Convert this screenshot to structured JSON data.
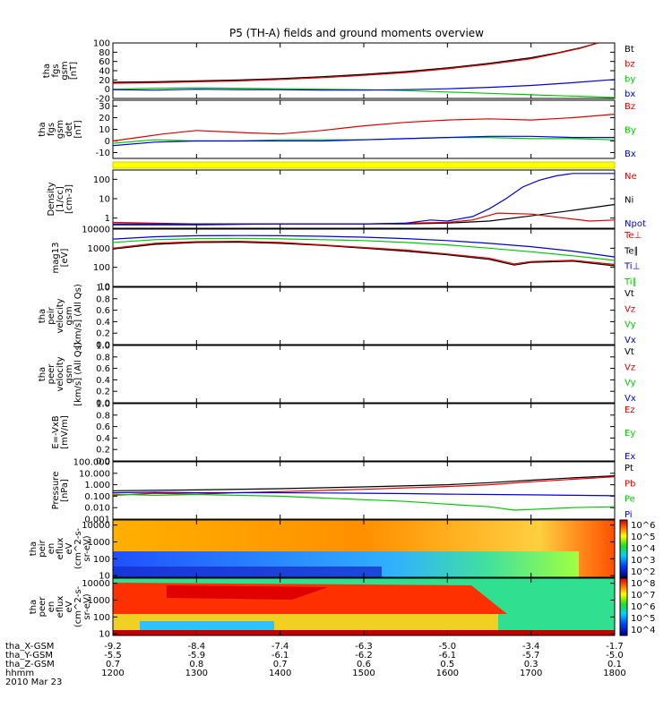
{
  "chart_data": {
    "type": "line",
    "title": "P5 (TH-A) fields and ground moments overview",
    "panels": [
      {
        "id": "fgs_gsm",
        "ylabel": [
          "tha",
          "fgs",
          "gsm",
          "[nT]"
        ],
        "ylim": [
          -20,
          100
        ],
        "ticks": [
          "100",
          "80",
          "60",
          "40",
          "20",
          "0",
          "-20"
        ],
        "legend": [
          {
            "name": "Bt",
            "color": "#000000"
          },
          {
            "name": "bz",
            "color": "#e00000"
          },
          {
            "name": "by",
            "color": "#00c800"
          },
          {
            "name": "bx",
            "color": "#0000e0"
          }
        ]
      },
      {
        "id": "fgs_gsm_det",
        "ylabel": [
          "tha",
          "fgs",
          "gsm",
          "det",
          "[nT]"
        ],
        "ylim": [
          -15,
          35
        ],
        "ticks": [
          "30",
          "20",
          "10",
          "0",
          "-10"
        ],
        "legend": [
          {
            "name": "Bz",
            "color": "#e00000"
          },
          {
            "name": "By",
            "color": "#00c800"
          },
          {
            "name": "Bx",
            "color": "#0000e0"
          }
        ]
      },
      {
        "id": "density",
        "ylabel": [
          "Density",
          "[1/cc]",
          "[cm-3]"
        ],
        "ylim": [
          0.3,
          300
        ],
        "log": true,
        "ticks": [
          "100",
          "10",
          "1"
        ],
        "legend": [
          {
            "name": "Ne",
            "color": "#e00000"
          },
          {
            "name": "Ni",
            "color": "#000000"
          },
          {
            "name": "Npot",
            "color": "#0000e0"
          }
        ]
      },
      {
        "id": "temperature",
        "ylabel": [
          "mag13",
          "[eV]"
        ],
        "ylim": [
          10,
          10000
        ],
        "log": true,
        "ticks": [
          "10000",
          "1000",
          "100",
          "10"
        ],
        "legend": [
          {
            "name": "Te⊥",
            "color": "#e00000"
          },
          {
            "name": "Te∥",
            "color": "#000000"
          },
          {
            "name": "Ti⊥",
            "color": "#0000e0"
          },
          {
            "name": "Ti∥",
            "color": "#00c800"
          }
        ]
      },
      {
        "id": "peir_velocity",
        "ylabel": [
          "tha",
          "peir",
          "velocity",
          "gsm",
          "[km/s] (All Qs)"
        ],
        "ylim": [
          0,
          1
        ],
        "ticks": [
          "1.0",
          "0.8",
          "0.6",
          "0.4",
          "0.2",
          "0.0"
        ],
        "legend": [
          {
            "name": "Vt",
            "color": "#000000"
          },
          {
            "name": "Vz",
            "color": "#e00000"
          },
          {
            "name": "Vy",
            "color": "#00c800"
          },
          {
            "name": "Vx",
            "color": "#0000e0"
          }
        ]
      },
      {
        "id": "peer_velocity",
        "ylabel": [
          "tha",
          "peer",
          "velocity",
          "gsm",
          "[km/s] (All Qs)"
        ],
        "ylim": [
          0,
          1
        ],
        "ticks": [
          "1.0",
          "0.8",
          "0.6",
          "0.4",
          "0.2",
          "0.0"
        ],
        "legend": [
          {
            "name": "Vt",
            "color": "#000000"
          },
          {
            "name": "Vz",
            "color": "#e00000"
          },
          {
            "name": "Vy",
            "color": "#00c800"
          },
          {
            "name": "Vx",
            "color": "#0000e0"
          }
        ]
      },
      {
        "id": "efield",
        "ylabel": [
          "E=-VxB",
          "[mV/m]"
        ],
        "ylim": [
          0,
          1
        ],
        "ticks": [
          "1.0",
          "0.8",
          "0.6",
          "0.4",
          "0.2",
          "0.0"
        ],
        "legend": [
          {
            "name": "Ez",
            "color": "#e00000"
          },
          {
            "name": "Ey",
            "color": "#00c800"
          },
          {
            "name": "Ex",
            "color": "#0000e0"
          }
        ]
      },
      {
        "id": "pressure",
        "ylabel": [
          "Pressure",
          "[nPa]"
        ],
        "ylim": [
          0.001,
          100
        ],
        "log": true,
        "ticks": [
          "100.000",
          "10.000",
          "1.000",
          "0.100",
          "0.010",
          "0.001"
        ],
        "legend": [
          {
            "name": "Pt",
            "color": "#000000"
          },
          {
            "name": "Pb",
            "color": "#e00000"
          },
          {
            "name": "Pe",
            "color": "#00c800"
          },
          {
            "name": "Pi",
            "color": "#0000e0"
          }
        ]
      },
      {
        "id": "ion_spec",
        "ylabel": [
          "tha",
          "peir",
          "en",
          "eflux",
          "eV",
          "(cm^2-s-",
          "sr-eV)"
        ],
        "ylim": [
          8,
          20000
        ],
        "log": true,
        "ticks": [
          "10000",
          "1000",
          "100",
          "10"
        ],
        "colorbar": [
          "10^6",
          "10^5",
          "10^4",
          "10^3",
          "10^2"
        ]
      },
      {
        "id": "elec_spec",
        "ylabel": [
          "tha",
          "peer",
          "en",
          "eflux",
          "eV",
          "(cm^2-s-",
          "sr-eV)"
        ],
        "ylim": [
          8,
          20000
        ],
        "log": true,
        "ticks": [
          "10000",
          "1000",
          "100",
          "10"
        ],
        "colorbar": [
          "10^8",
          "10^7",
          "10^6",
          "10^5",
          "10^4"
        ]
      }
    ],
    "x_hhmm": [
      "1200",
      "1300",
      "1400",
      "1500",
      "1600",
      "1700",
      "1800"
    ],
    "x_start_hour": 12,
    "x_end_hour": 18,
    "ephem": [
      {
        "name": "tha_X-GSM",
        "values": [
          "-9.2",
          "-8.4",
          "-7.4",
          "-6.3",
          "-5.0",
          "-3.4",
          "-1.7"
        ]
      },
      {
        "name": "tha_Y-GSM",
        "values": [
          "-5.5",
          "-5.9",
          "-6.1",
          "-6.2",
          "-6.1",
          "-5.7",
          "-5.0"
        ]
      },
      {
        "name": "tha_Z-GSM",
        "values": [
          "0.7",
          "0.8",
          "0.7",
          "0.6",
          "0.5",
          "0.3",
          "0.1"
        ]
      }
    ],
    "x_row_label": "hhmm",
    "date": "2010 Mar 23",
    "series": {
      "Bt": [
        [
          12,
          15
        ],
        [
          12.5,
          16
        ],
        [
          13,
          18
        ],
        [
          13.5,
          20
        ],
        [
          14,
          23
        ],
        [
          14.5,
          27
        ],
        [
          15,
          32
        ],
        [
          15.5,
          38
        ],
        [
          16,
          46
        ],
        [
          16.5,
          56
        ],
        [
          17,
          68
        ],
        [
          17.3,
          78
        ],
        [
          17.6,
          90
        ],
        [
          17.8,
          100
        ]
      ],
      "bz": [
        [
          12,
          13
        ],
        [
          12.5,
          14
        ],
        [
          13,
          16
        ],
        [
          13.5,
          18
        ],
        [
          14,
          21
        ],
        [
          14.5,
          25
        ],
        [
          15,
          30
        ],
        [
          15.5,
          36
        ],
        [
          16,
          44
        ],
        [
          16.5,
          54
        ],
        [
          17,
          66
        ],
        [
          17.3,
          77
        ],
        [
          17.6,
          89
        ],
        [
          17.8,
          100
        ]
      ],
      "by": [
        [
          12,
          0
        ],
        [
          12.5,
          2
        ],
        [
          13,
          3
        ],
        [
          13.5,
          2
        ],
        [
          14,
          1
        ],
        [
          14.5,
          0
        ],
        [
          15,
          -1
        ],
        [
          15.5,
          -3
        ],
        [
          16,
          -6
        ],
        [
          16.5,
          -9
        ],
        [
          17,
          -12
        ],
        [
          17.5,
          -15
        ],
        [
          18,
          -18
        ]
      ],
      "bx": [
        [
          12,
          -1
        ],
        [
          12.5,
          -2
        ],
        [
          13,
          0
        ],
        [
          13.5,
          -1
        ],
        [
          14,
          -1
        ],
        [
          14.5,
          -2
        ],
        [
          15,
          -2
        ],
        [
          15.5,
          -1
        ],
        [
          16,
          1
        ],
        [
          16.5,
          4
        ],
        [
          17,
          8
        ],
        [
          17.5,
          14
        ],
        [
          18,
          21
        ]
      ],
      "Bz_det": [
        [
          12,
          0
        ],
        [
          12.3,
          3
        ],
        [
          12.6,
          6
        ],
        [
          13,
          9
        ],
        [
          13.3,
          8
        ],
        [
          13.6,
          7
        ],
        [
          14,
          6
        ],
        [
          14.5,
          9
        ],
        [
          15,
          13
        ],
        [
          15.5,
          16
        ],
        [
          16,
          18
        ],
        [
          16.5,
          19
        ],
        [
          17,
          18
        ],
        [
          17.5,
          20
        ],
        [
          18,
          23
        ]
      ],
      "By_det": [
        [
          12,
          -2
        ],
        [
          12.5,
          1
        ],
        [
          13,
          0
        ],
        [
          13.5,
          0
        ],
        [
          14,
          1
        ],
        [
          14.5,
          1
        ],
        [
          15,
          1
        ],
        [
          15.5,
          2
        ],
        [
          16,
          3
        ],
        [
          16.5,
          3
        ],
        [
          17,
          2
        ],
        [
          17.5,
          2
        ],
        [
          18,
          1
        ]
      ],
      "Bx_det": [
        [
          12,
          -4
        ],
        [
          12.5,
          -1
        ],
        [
          13,
          0
        ],
        [
          13.5,
          0
        ],
        [
          14,
          0
        ],
        [
          14.5,
          0
        ],
        [
          15,
          1
        ],
        [
          15.5,
          2
        ],
        [
          16,
          3
        ],
        [
          16.5,
          4
        ],
        [
          17,
          4
        ],
        [
          17.5,
          3
        ],
        [
          18,
          3
        ]
      ],
      "Ne": [
        [
          12,
          0.6
        ],
        [
          12.5,
          0.55
        ],
        [
          13,
          0.5
        ],
        [
          13.5,
          0.5
        ],
        [
          14,
          0.5
        ],
        [
          14.5,
          0.5
        ],
        [
          15,
          0.5
        ],
        [
          15.5,
          0.55
        ],
        [
          16,
          0.6
        ],
        [
          16.3,
          0.8
        ],
        [
          16.6,
          1.8
        ],
        [
          17,
          1.6
        ],
        [
          17.4,
          1.0
        ],
        [
          17.7,
          0.7
        ],
        [
          18,
          0.8
        ]
      ],
      "Ni": [
        [
          12,
          0.45
        ],
        [
          13,
          0.45
        ],
        [
          14,
          0.5
        ],
        [
          15,
          0.5
        ],
        [
          15.5,
          0.5
        ],
        [
          16,
          0.55
        ],
        [
          16.5,
          0.7
        ],
        [
          17,
          1.3
        ],
        [
          17.5,
          2.5
        ],
        [
          18,
          5
        ]
      ],
      "Npot": [
        [
          12,
          0.5
        ],
        [
          13,
          0.5
        ],
        [
          14,
          0.5
        ],
        [
          15,
          0.5
        ],
        [
          15.5,
          0.55
        ],
        [
          15.8,
          0.8
        ],
        [
          16,
          0.7
        ],
        [
          16.3,
          1.2
        ],
        [
          16.5,
          3
        ],
        [
          16.7,
          10
        ],
        [
          16.9,
          40
        ],
        [
          17.1,
          90
        ],
        [
          17.3,
          150
        ],
        [
          17.5,
          200
        ],
        [
          18,
          200
        ]
      ],
      "Te_perp": [
        [
          12,
          1000
        ],
        [
          12.5,
          1800
        ],
        [
          13,
          2200
        ],
        [
          13.5,
          2300
        ],
        [
          14,
          2000
        ],
        [
          14.5,
          1500
        ],
        [
          15,
          1100
        ],
        [
          15.5,
          800
        ],
        [
          16,
          500
        ],
        [
          16.5,
          300
        ],
        [
          16.8,
          150
        ],
        [
          17,
          200
        ],
        [
          17.5,
          230
        ],
        [
          18,
          140
        ]
      ],
      "Te_par": [
        [
          12,
          900
        ],
        [
          12.5,
          1600
        ],
        [
          13,
          2000
        ],
        [
          13.5,
          2100
        ],
        [
          14,
          1800
        ],
        [
          14.5,
          1400
        ],
        [
          15,
          1000
        ],
        [
          15.5,
          700
        ],
        [
          16,
          450
        ],
        [
          16.5,
          260
        ],
        [
          16.8,
          130
        ],
        [
          17,
          180
        ],
        [
          17.5,
          210
        ],
        [
          18,
          120
        ]
      ],
      "Ti_perp": [
        [
          12,
          3000
        ],
        [
          12.5,
          4000
        ],
        [
          13,
          4500
        ],
        [
          13.5,
          4600
        ],
        [
          14,
          4500
        ],
        [
          14.5,
          4200
        ],
        [
          15,
          3800
        ],
        [
          15.5,
          3200
        ],
        [
          16,
          2500
        ],
        [
          16.5,
          1800
        ],
        [
          17,
          1200
        ],
        [
          17.5,
          700
        ],
        [
          18,
          350
        ]
      ],
      "Ti_par": [
        [
          12,
          2000
        ],
        [
          12.5,
          2800
        ],
        [
          13,
          3200
        ],
        [
          13.5,
          3300
        ],
        [
          14,
          3100
        ],
        [
          14.5,
          2800
        ],
        [
          15,
          2500
        ],
        [
          15.5,
          2000
        ],
        [
          16,
          1500
        ],
        [
          16.5,
          1000
        ],
        [
          17,
          650
        ],
        [
          17.5,
          400
        ],
        [
          18,
          230
        ]
      ],
      "Pt": [
        [
          12,
          0.3
        ],
        [
          13,
          0.35
        ],
        [
          14,
          0.45
        ],
        [
          15,
          0.65
        ],
        [
          16,
          1.0
        ],
        [
          16.5,
          1.5
        ],
        [
          17,
          2.5
        ],
        [
          17.5,
          4
        ],
        [
          18,
          6
        ]
      ],
      "Pb": [
        [
          12,
          0.12
        ],
        [
          12.5,
          0.18
        ],
        [
          13,
          0.15
        ],
        [
          13.5,
          0.2
        ],
        [
          14,
          0.25
        ],
        [
          15,
          0.4
        ],
        [
          16,
          0.7
        ],
        [
          16.5,
          1.0
        ],
        [
          17,
          1.8
        ],
        [
          17.5,
          3
        ],
        [
          18,
          5
        ]
      ],
      "Pe": [
        [
          12,
          0.15
        ],
        [
          12.5,
          0.12
        ],
        [
          13,
          0.14
        ],
        [
          14,
          0.1
        ],
        [
          14.5,
          0.07
        ],
        [
          15,
          0.05
        ],
        [
          15.5,
          0.035
        ],
        [
          16,
          0.02
        ],
        [
          16.5,
          0.012
        ],
        [
          16.8,
          0.006
        ],
        [
          17,
          0.007
        ],
        [
          17.5,
          0.01
        ],
        [
          18,
          0.012
        ]
      ],
      "Pi": [
        [
          12,
          0.2
        ],
        [
          12.5,
          0.22
        ],
        [
          13,
          0.2
        ],
        [
          14,
          0.2
        ],
        [
          14.5,
          0.19
        ],
        [
          15,
          0.18
        ],
        [
          15.5,
          0.17
        ],
        [
          16,
          0.15
        ],
        [
          16.5,
          0.14
        ],
        [
          17,
          0.13
        ],
        [
          17.5,
          0.12
        ],
        [
          18,
          0.11
        ]
      ]
    }
  }
}
